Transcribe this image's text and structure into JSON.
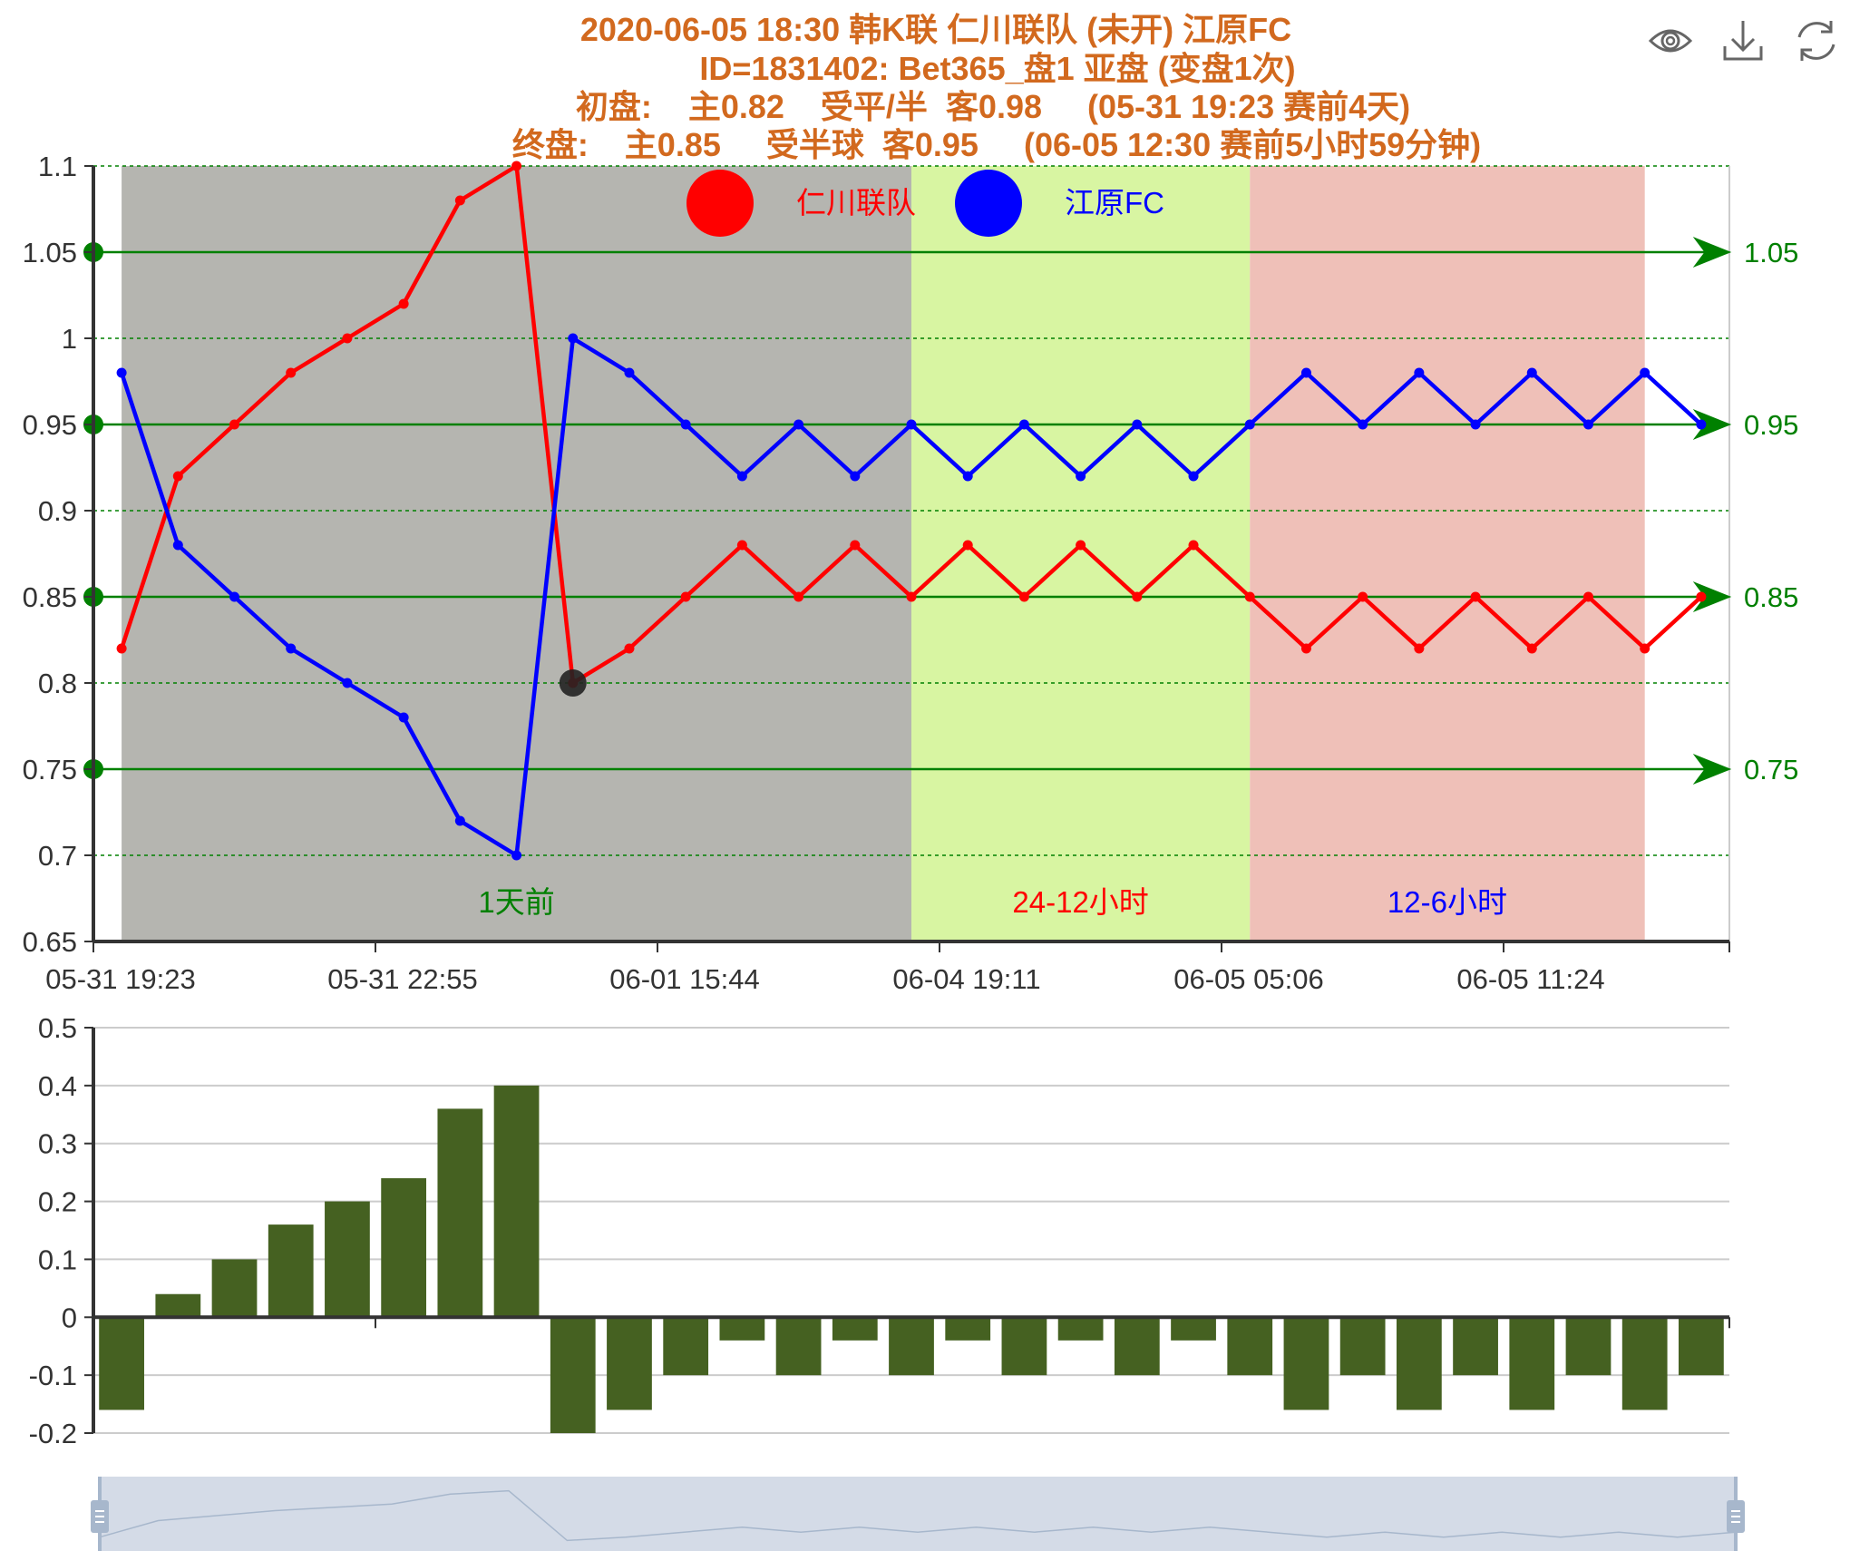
{
  "title": {
    "lines": [
      "2020-06-05 18:30 韩K联 仁川联队 (未开) 江原FC",
      "ID=1831402: Bet365_盘1 亚盘 (变盘1次)",
      "初盘:    主0.82    受平/半  客0.98     (05-31 19:23 赛前4天)",
      "终盘:    主0.85     受半球  客0.95     (06-05 12:30 赛前5小时59分钟)"
    ],
    "color": "#d2691e"
  },
  "toolbox": {
    "icons": [
      "eye-icon",
      "download-icon",
      "refresh-icon"
    ],
    "color": "#666666"
  },
  "legend": {
    "home": {
      "label": "仁川联队",
      "color": "#ff0000"
    },
    "away": {
      "label": "江原FC",
      "color": "#0000ff"
    }
  },
  "zones": [
    {
      "label": "1天前",
      "color": "#b5b5b0",
      "label_color": "#008000",
      "from_index": 0,
      "to_index": 14
    },
    {
      "label": "24-12小时",
      "color": "#d8f5a2",
      "label_color": "#ff0000",
      "from_index": 14,
      "to_index": 20
    },
    {
      "label": "12-6小时",
      "color": "#efc0b8",
      "label_color": "#0000ff",
      "from_index": 20,
      "to_index": 27
    }
  ],
  "chart_data": [
    {
      "type": "line",
      "x_ticks": [
        "05-31 19:23",
        "05-31 22:55",
        "06-01 15:44",
        "06-04 19:11",
        "06-05 05:06",
        "06-05 11:24"
      ],
      "ylim": [
        0.65,
        1.1
      ],
      "y_ticks": [
        "0.65",
        "0.7",
        "0.75",
        "0.8",
        "0.85",
        "0.9",
        "0.95",
        "1",
        "1.05",
        "1.1"
      ],
      "grid": "dashed",
      "grid_color": "#008000",
      "series": [
        {
          "name": "仁川联队",
          "color": "#ff0000",
          "values": [
            0.82,
            0.92,
            0.95,
            0.98,
            1.0,
            1.02,
            1.08,
            1.1,
            0.8,
            0.82,
            0.85,
            0.88,
            0.85,
            0.88,
            0.85,
            0.88,
            0.85,
            0.88,
            0.85,
            0.88,
            0.85,
            0.82,
            0.85,
            0.82,
            0.85,
            0.82,
            0.85,
            0.82,
            0.85
          ]
        },
        {
          "name": "江原FC",
          "color": "#0000ff",
          "values": [
            0.98,
            0.88,
            0.85,
            0.82,
            0.8,
            0.78,
            0.72,
            0.7,
            1.0,
            0.98,
            0.95,
            0.92,
            0.95,
            0.92,
            0.95,
            0.92,
            0.95,
            0.92,
            0.95,
            0.92,
            0.95,
            0.98,
            0.95,
            0.98,
            0.95,
            0.98,
            0.95,
            0.98,
            0.95
          ]
        }
      ],
      "mark_lines": {
        "values": [
          "0.75",
          "0.85",
          "0.95",
          "1.05"
        ],
        "color": "#008000"
      },
      "highlight_point": {
        "series": "仁川联队",
        "index": 8,
        "value": 0.8
      }
    },
    {
      "type": "bar",
      "ylim": [
        -0.2,
        0.5
      ],
      "y_ticks": [
        "-0.2",
        "-0.1",
        "0",
        "0.1",
        "0.2",
        "0.3",
        "0.4",
        "0.5"
      ],
      "grid": "solid",
      "color": "#456121",
      "values": [
        -0.16,
        0.04,
        0.1,
        0.16,
        0.2,
        0.24,
        0.36,
        0.4,
        -0.2,
        -0.16,
        -0.1,
        -0.04,
        -0.1,
        -0.04,
        -0.1,
        -0.04,
        -0.1,
        -0.04,
        -0.1,
        -0.04,
        -0.1,
        -0.16,
        -0.1,
        -0.16,
        -0.1,
        -0.16,
        -0.1,
        -0.16,
        -0.1
      ]
    }
  ],
  "data_zoom": {
    "fill": "#d4dbe7",
    "handle_color": "#a7b7cc"
  }
}
